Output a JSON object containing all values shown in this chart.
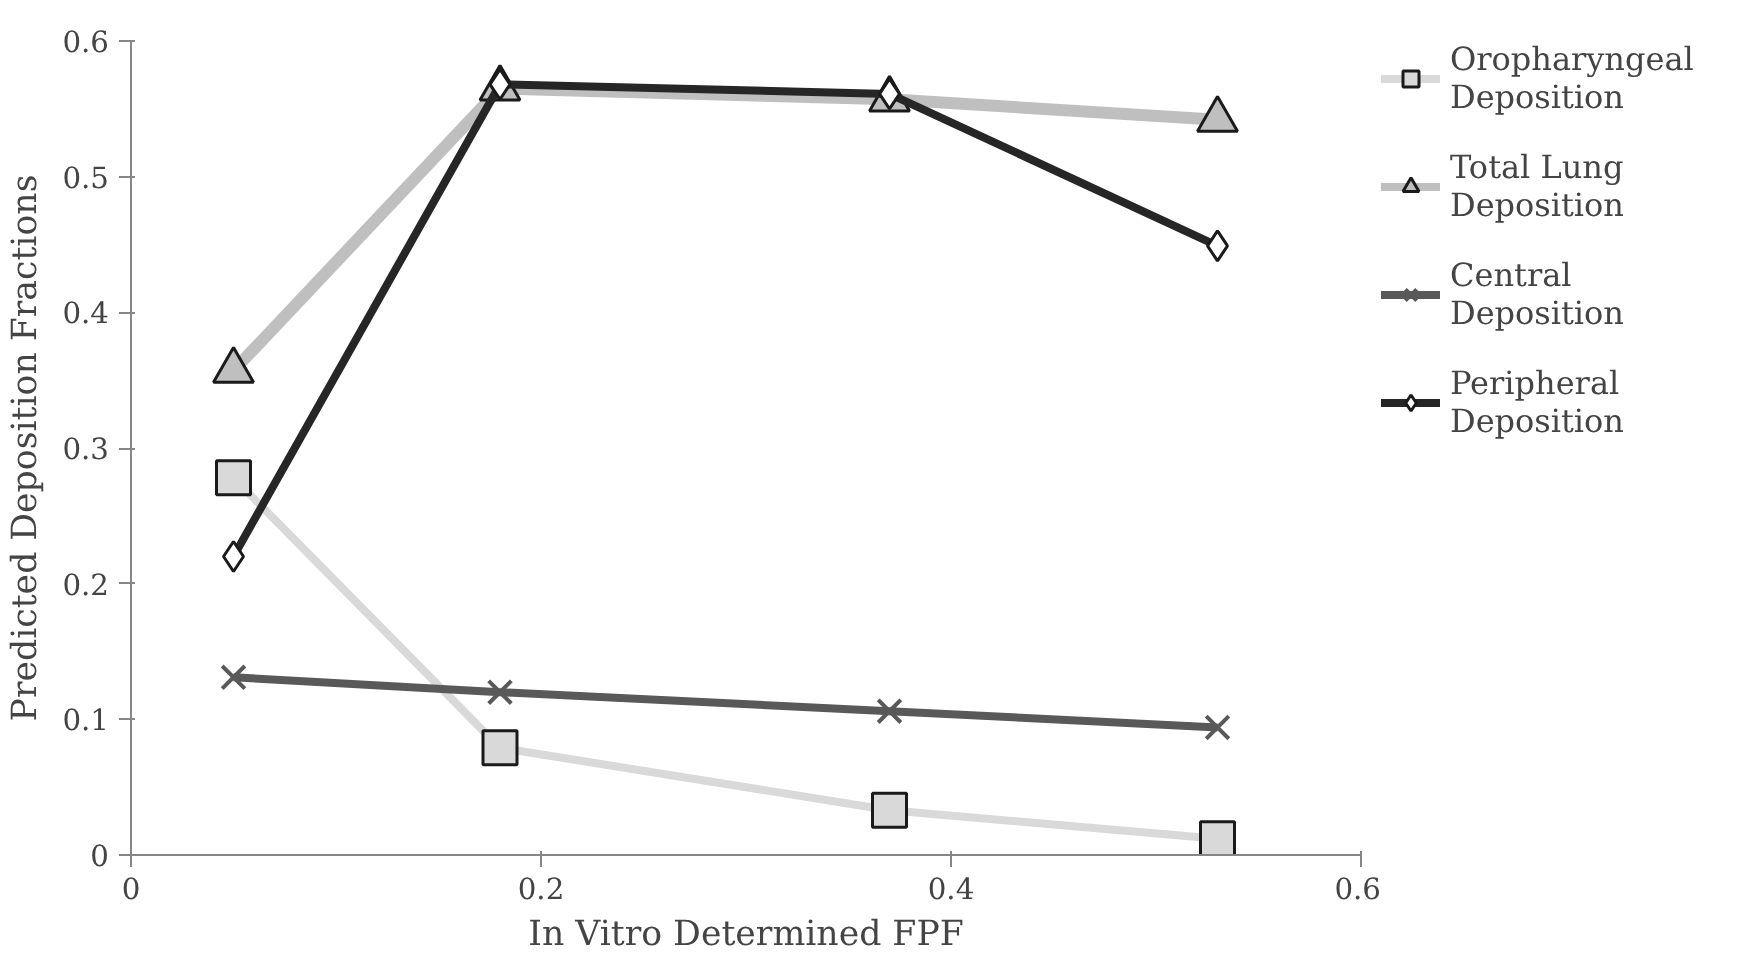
{
  "chart_data": {
    "type": "line",
    "xlabel": "In Vitro Determined FPF",
    "ylabel": "Predicted Deposition Fractions",
    "x": [
      0.05,
      0.18,
      0.37,
      0.53
    ],
    "series": [
      {
        "name": "Oropharyngeal Deposition",
        "color": "#d9d9d9",
        "marker": "square",
        "values": [
          0.278,
          0.079,
          0.033,
          0.012
        ]
      },
      {
        "name": "Total Lung Deposition",
        "color": "#bfbfbf",
        "marker": "triangle",
        "values": [
          0.357,
          0.565,
          0.557,
          0.542
        ]
      },
      {
        "name": "Central Deposition",
        "color": "#595959",
        "marker": "cross",
        "values": [
          0.131,
          0.12,
          0.106,
          0.094
        ]
      },
      {
        "name": "Peripheral Deposition",
        "color": "#262626",
        "marker": "diamond",
        "values": [
          0.22,
          0.568,
          0.561,
          0.449
        ]
      }
    ],
    "xlim": [
      0,
      0.6
    ],
    "xticks": [
      0,
      0.2,
      0.4,
      0.6
    ],
    "ylim": [
      0,
      0.6
    ],
    "yticks": [
      0,
      0.1,
      0.2,
      0.3,
      0.4,
      0.5,
      0.6
    ],
    "grid": false,
    "legend": "right"
  }
}
